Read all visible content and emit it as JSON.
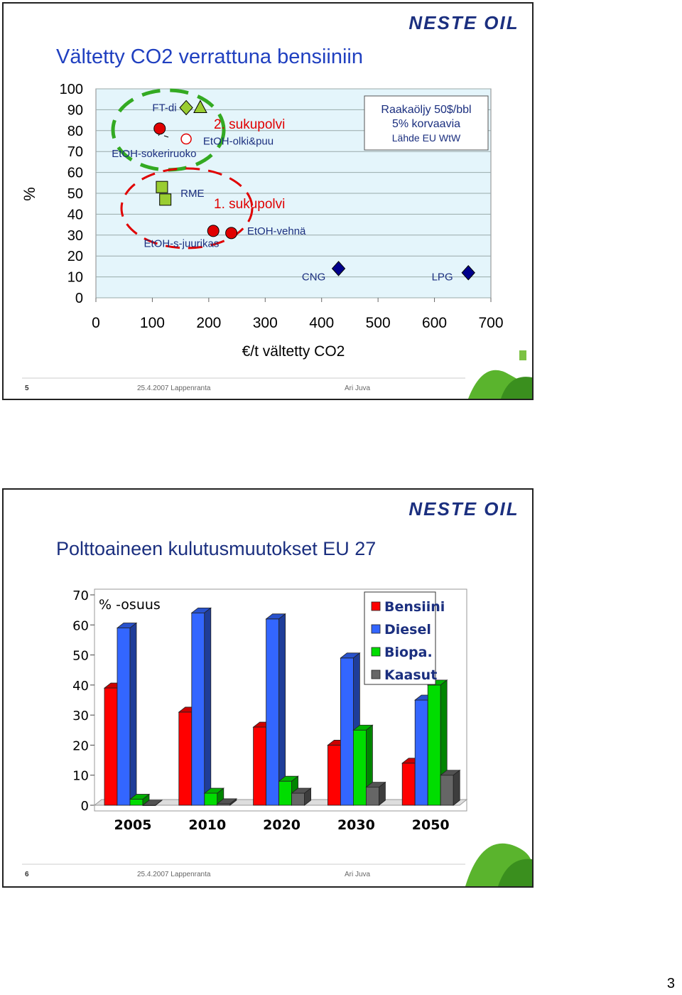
{
  "page_number": "3",
  "slides": [
    {
      "logo_text": "NESTE OIL",
      "footer": {
        "page": "5",
        "date_place": "25.4.2007 Lappenranta",
        "author": "Ari Juva"
      }
    },
    {
      "logo_text": "NESTE OIL",
      "footer": {
        "page": "6",
        "date_place": "25.4.2007 Lappenranta",
        "author": "Ari Juva"
      }
    }
  ],
  "chart_data": [
    {
      "type": "scatter",
      "title": "Vältetty CO2 verrattuna bensiiniin",
      "xlabel": "€/t vältetty CO2",
      "ylabel": "%",
      "xlim": [
        0,
        700
      ],
      "ylim": [
        0,
        100
      ],
      "x_ticks": [
        "0",
        "100",
        "200",
        "300",
        "400",
        "500",
        "600",
        "700"
      ],
      "y_ticks": [
        "100",
        "90",
        "80",
        "70",
        "60",
        "50",
        "40",
        "30",
        "20",
        "10",
        "0"
      ],
      "grid": "horizontal",
      "info_box": [
        "Raakaöljy 50$/bbl",
        "5% korvaavia",
        "Lähde EU WtW"
      ],
      "group_labels": [
        "2. sukupolvi",
        "1. sukupolvi"
      ],
      "points": [
        {
          "x": 113,
          "y": 81,
          "marker": "circle",
          "color": "#e00000"
        },
        {
          "x": 160,
          "y": 91,
          "marker": "diamond",
          "color": "#9acd32"
        },
        {
          "x": 185,
          "y": 91,
          "marker": "triangle",
          "color": "#9acd32"
        },
        {
          "x": 160,
          "y": 76,
          "marker": "circle-open",
          "color": "#e00000"
        },
        {
          "x": 117,
          "y": 53,
          "marker": "square",
          "color": "#9acd32"
        },
        {
          "x": 123,
          "y": 47,
          "marker": "square",
          "color": "#9acd32"
        },
        {
          "x": 208,
          "y": 32,
          "marker": "circle",
          "color": "#e00000"
        },
        {
          "x": 240,
          "y": 31,
          "marker": "circle",
          "color": "#e00000"
        },
        {
          "x": 430,
          "y": 14,
          "marker": "diamond",
          "color": "#00008b"
        },
        {
          "x": 660,
          "y": 12,
          "marker": "diamond",
          "color": "#00008b"
        }
      ],
      "annotations": [
        {
          "text": "FT-di",
          "x": 100,
          "y": 91
        },
        {
          "text": "EtOH-olki&puu",
          "x": 190,
          "y": 75
        },
        {
          "text": "EtOH-sokeriruoko",
          "x": 28,
          "y": 69
        },
        {
          "text": "RME",
          "x": 150,
          "y": 50
        },
        {
          "text": "EtOH-vehnä",
          "x": 268,
          "y": 32
        },
        {
          "text": "EtOH-s-juurikas",
          "x": 85,
          "y": 26
        },
        {
          "text": "CNG",
          "x": 365,
          "y": 10
        },
        {
          "text": "LPG",
          "x": 595,
          "y": 10
        }
      ]
    },
    {
      "type": "bar",
      "title": "Polttoaineen kulutusmuutokset EU 27",
      "ylabel": "% -osuus",
      "xlabel": "",
      "ylim": [
        0,
        70
      ],
      "y_ticks": [
        "70",
        "60",
        "50",
        "40",
        "30",
        "20",
        "10",
        "0"
      ],
      "categories": [
        "2005",
        "2010",
        "2020",
        "2030",
        "2050"
      ],
      "legend_position": "top-right",
      "series": [
        {
          "name": "Bensiini",
          "color": "#ff0000",
          "values": [
            39,
            31,
            26,
            20,
            14
          ]
        },
        {
          "name": "Diesel",
          "color": "#3366ff",
          "values": [
            59,
            64,
            62,
            49,
            35
          ]
        },
        {
          "name": "Biopa.",
          "color": "#00dd00",
          "values": [
            2,
            4,
            8,
            25,
            40
          ]
        },
        {
          "name": "Kaasut",
          "color": "#666666",
          "values": [
            0,
            0.5,
            4,
            6,
            10
          ]
        }
      ]
    }
  ]
}
